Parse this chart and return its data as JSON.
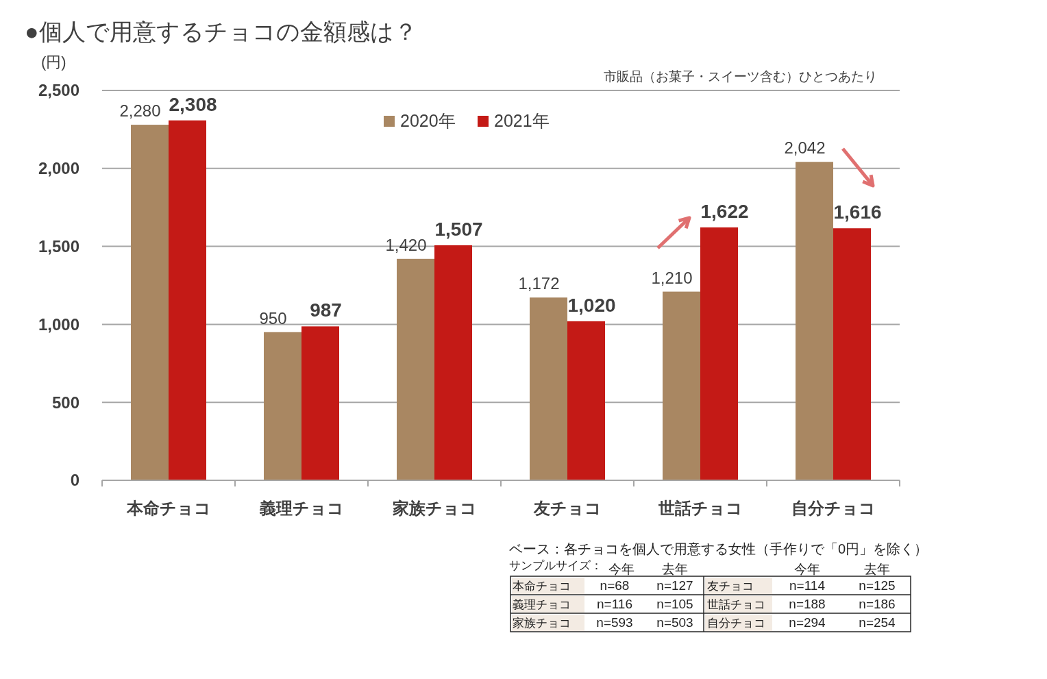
{
  "chart_data": {
    "type": "bar",
    "title": "●個人で用意するチョコの金額感は？",
    "subtitle": "市販品（お菓子・スイーツ含む）ひとつあたり",
    "ylabel": "(円)",
    "categories": [
      "本命チョコ",
      "義理チョコ",
      "家族チョコ",
      "友チョコ",
      "世話チョコ",
      "自分チョコ"
    ],
    "series": [
      {
        "name": "2020年",
        "color": "#a98762",
        "values": [
          2280,
          950,
          1420,
          1172,
          1210,
          2042
        ],
        "value_labels": [
          "2,280",
          "950",
          "1,420",
          "1,172",
          "1,210",
          "2,042"
        ]
      },
      {
        "name": "2021年",
        "color": "#c41a16",
        "values": [
          2308,
          987,
          1507,
          1020,
          1622,
          1616
        ],
        "value_labels": [
          "2,308",
          "987",
          "1,507",
          "1,020",
          "1,622",
          "1,616"
        ]
      }
    ],
    "ylim": [
      0,
      2500
    ],
    "yticks": [
      0,
      {
        "value": 500,
        "label": "500"
      },
      {
        "value": 1000,
        "label": "1,000"
      },
      {
        "value": 1500,
        "label": "1,500"
      },
      {
        "value": 2000,
        "label": "2,000"
      },
      {
        "value": 2500,
        "label": "2,500"
      }
    ],
    "grid": "y",
    "legend": "top",
    "annotations": [
      "ベース：各チョコを個人で用意する女性（手作りで「0円」を除く）",
      "サンプルサイズ：",
      "今年",
      "去年",
      "今年",
      "去年",
      "本命チョコ",
      "n=68",
      "n=127",
      "友チョコ",
      "n=114",
      "n=125",
      "義理チョコ",
      "n=116",
      "n=105",
      "世話チョコ",
      "n=188",
      "n=186",
      "家族チョコ",
      "n=593",
      "n=503",
      "自分チョコ",
      "n=294",
      "n=254"
    ]
  }
}
